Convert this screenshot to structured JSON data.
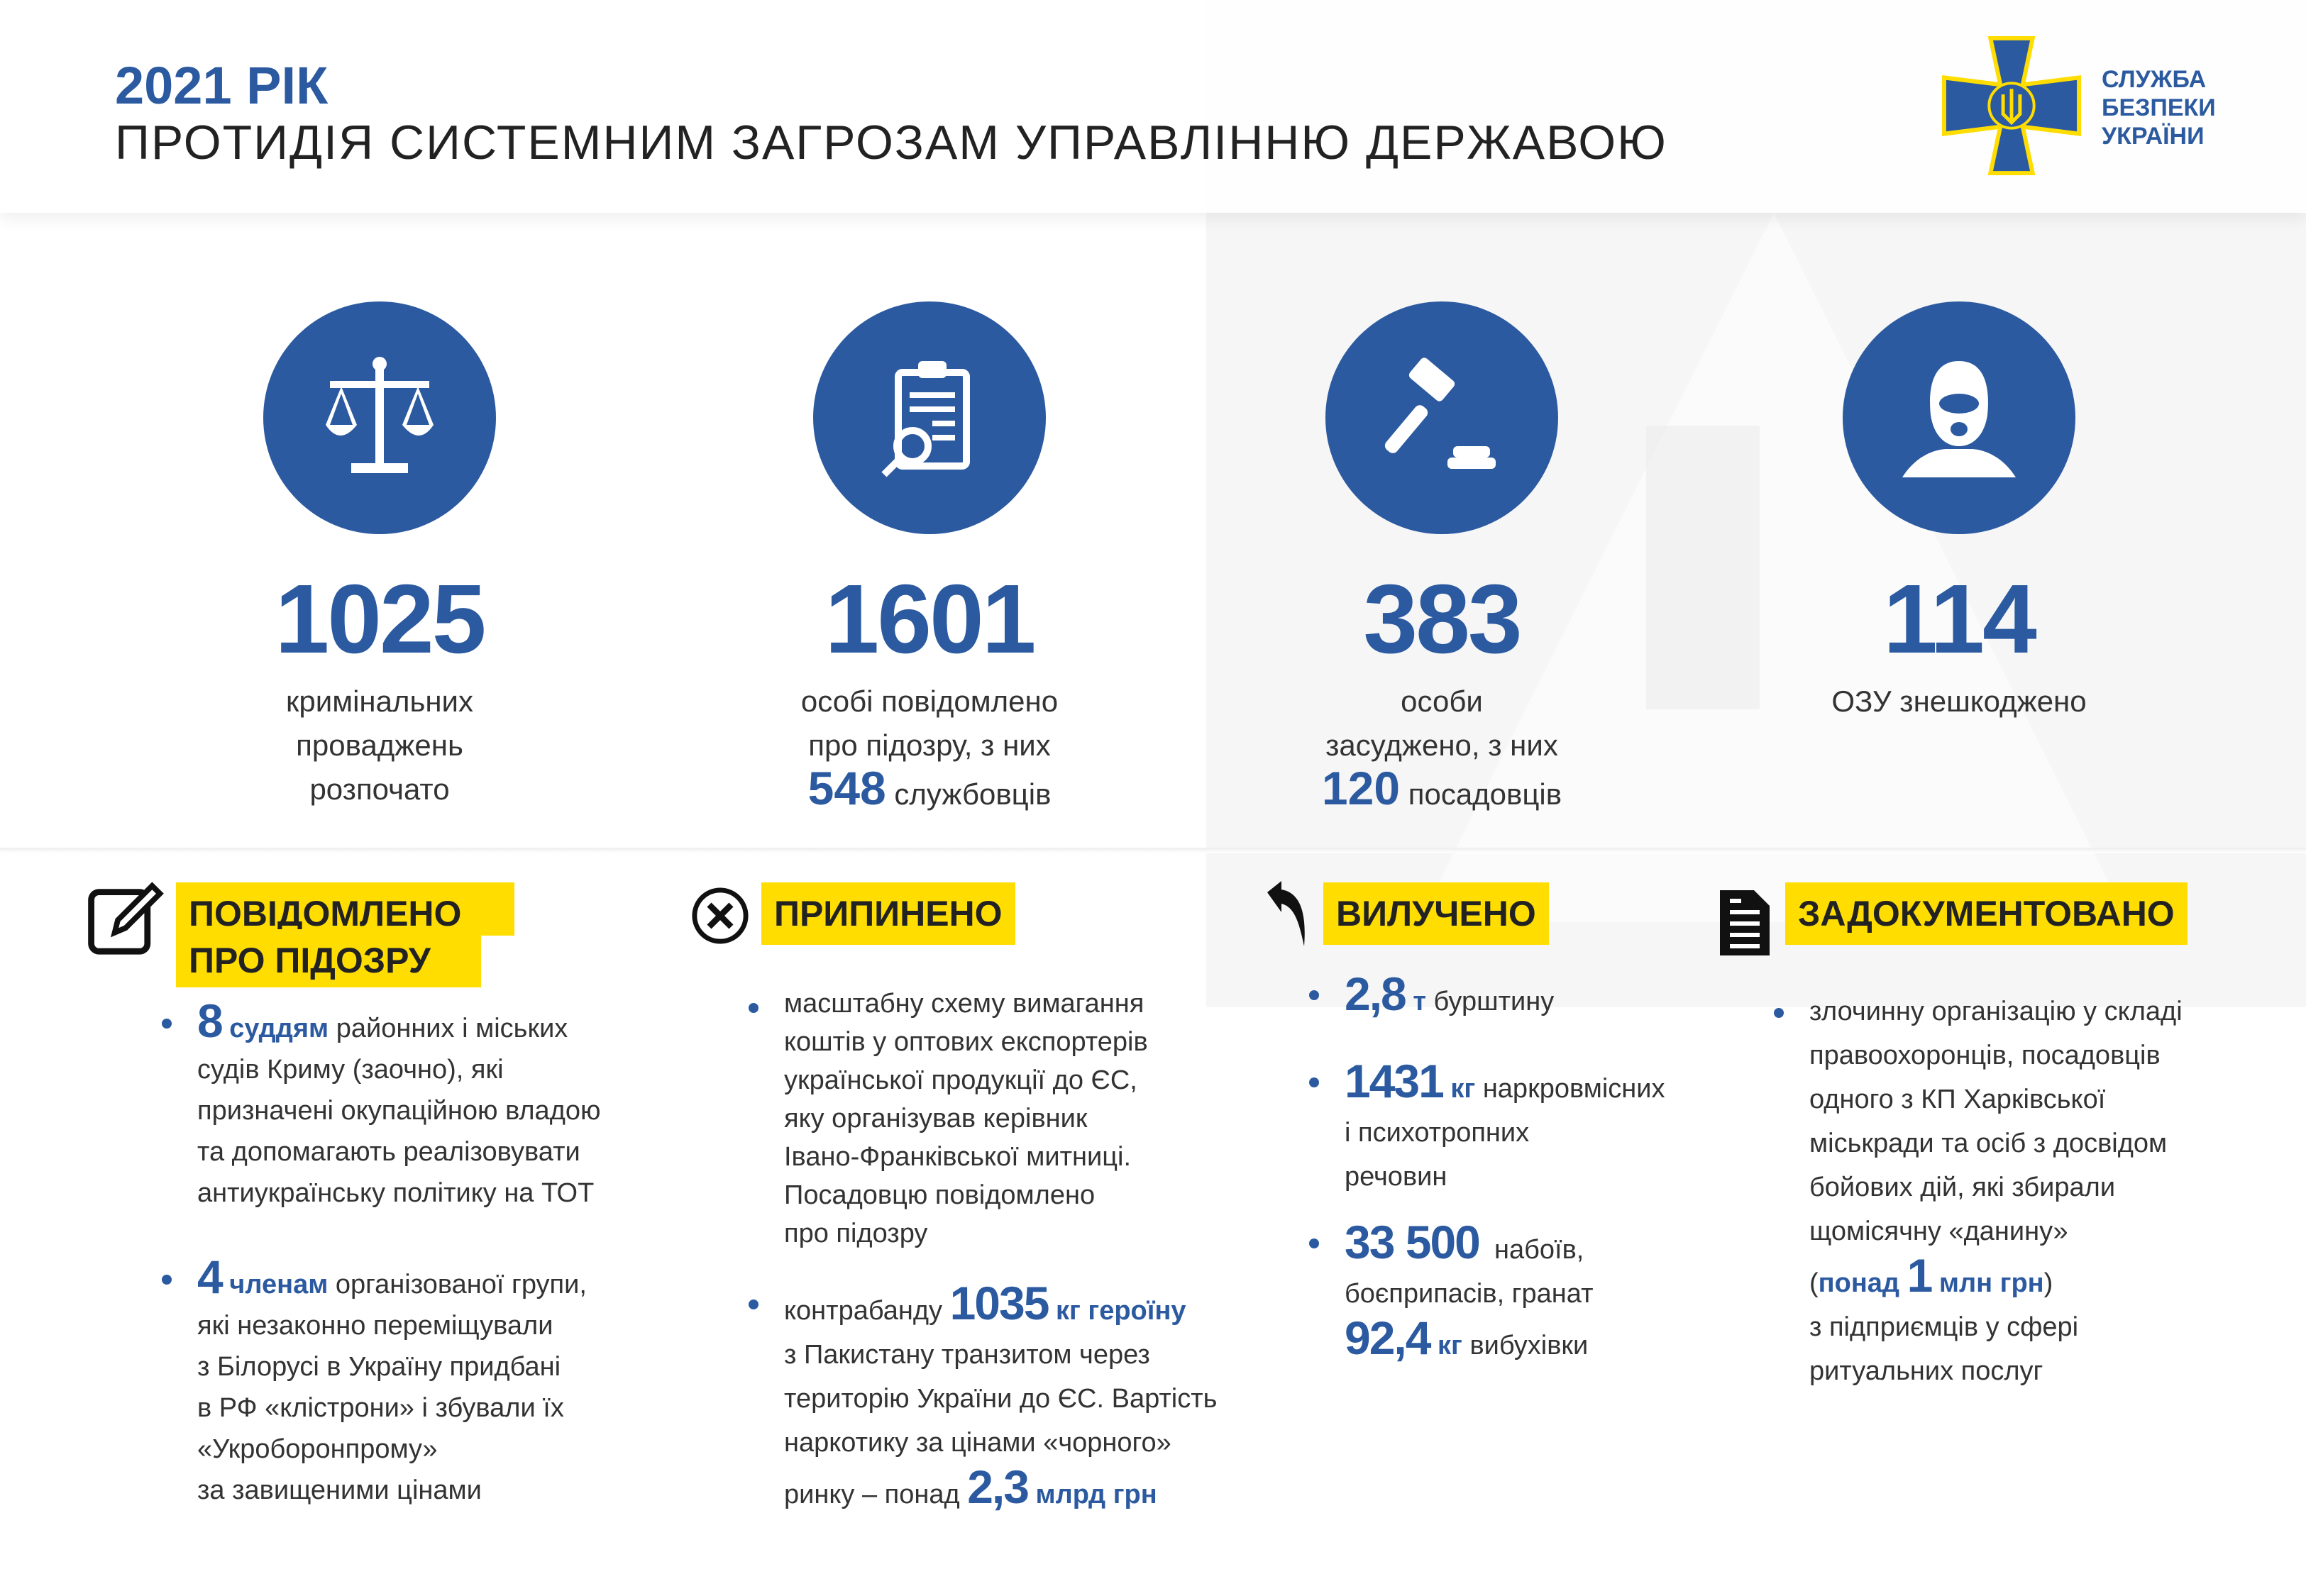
{
  "header": {
    "year": "2021 РІК",
    "title": "ПРОТИДІЯ СИСТЕМНИМ ЗАГРОЗАМ УПРАВЛІННЮ ДЕРЖАВОЮ"
  },
  "logo": {
    "lines": [
      "СЛУЖБА",
      "БЕЗПЕКИ",
      "УКРАЇНИ"
    ],
    "colors": {
      "blue": "#2c5aa0",
      "yellow": "#ffdd00"
    }
  },
  "colors": {
    "accent": "#2c5aa0",
    "highlight": "#ffdd00"
  },
  "stats": [
    {
      "icon": "scales-icon",
      "value": "1025",
      "lines": [
        "кримінальних",
        "проваджень",
        "розпочато"
      ]
    },
    {
      "icon": "clipboard-search-icon",
      "value": "1601",
      "lines": [
        "особі повідомлено",
        "про підозру, з них"
      ],
      "sub_value": "548",
      "sub_text": "службовців"
    },
    {
      "icon": "gavel-icon",
      "value": "383",
      "lines": [
        "особи",
        "засуджено, з них"
      ],
      "sub_value": "120",
      "sub_text": "посадовців"
    },
    {
      "icon": "balaclava-icon",
      "value": "114",
      "lines": [
        "ОЗУ знешкоджено"
      ]
    }
  ],
  "sections": {
    "suspicion": {
      "label1": "ПОВІДОМЛЕНО",
      "label2": "ПРО ПІДОЗРУ",
      "item1": {
        "num": "8",
        "unit": "суддям",
        "lines": [
          "районних і міських",
          "судів Криму (заочно), які",
          "призначені окупаційною владою",
          "та допомагають реалізовувати",
          "антиукраїнську політику на ТОТ"
        ]
      },
      "item2": {
        "num": "4",
        "unit": "членам",
        "lines": [
          "організованої групи,",
          "які незаконно переміщували",
          "з Білорусі в Україну придбані",
          "в РФ «клістрони» і збували їх",
          "«Укроборонпрому»",
          "за завищеними цінами"
        ]
      }
    },
    "stopped": {
      "label": "ПРИПИНЕНО",
      "item1": {
        "lines": [
          "масштабну схему вимагання",
          "коштів у оптових експортерів",
          "української продукції до ЄС,",
          "яку організував керівник",
          "Івано-Франківської митниці.",
          "Посадовцю повідомлено",
          "про підозру"
        ]
      },
      "item2": {
        "pre": "контрабанду",
        "num": "1035",
        "unit": "кг героїну",
        "lines": [
          "з Пакистану транзитом через",
          "територію України до ЄС. Вартість",
          "наркотику за цінами «чорного»"
        ],
        "last_pre": "ринку – понад",
        "num2": "2,3",
        "unit2": "млрд грн"
      }
    },
    "seized": {
      "label": "ВИЛУЧЕНО",
      "item1": {
        "num": "2,8",
        "unit": "т",
        "text": "бурштину"
      },
      "item2": {
        "num": "1431",
        "unit": "кг",
        "text": "наркровмісних",
        "lines": [
          "і психотропних",
          "речовин"
        ]
      },
      "item3": {
        "num": "33 500",
        "text": "набоїв,",
        "line": "боєприпасів, гранат",
        "num2": "92,4",
        "unit2": "кг",
        "text2": "вибухівки"
      }
    },
    "documented": {
      "label": "ЗАДОКУМЕНТОВАНО",
      "lines": [
        "злочинну організацію у складі",
        "правоохоронців, посадовців",
        "одного з КП Харківської",
        "міськради та осіб з досвідом",
        "бойових дій, які збирали",
        "щомісячну «данину»"
      ],
      "open": "(",
      "pre": "понад",
      "num": "1",
      "unit": "млн грн",
      "close": ")",
      "lines2": [
        "з підприємців у сфері",
        "ритуальних послуг"
      ]
    }
  }
}
